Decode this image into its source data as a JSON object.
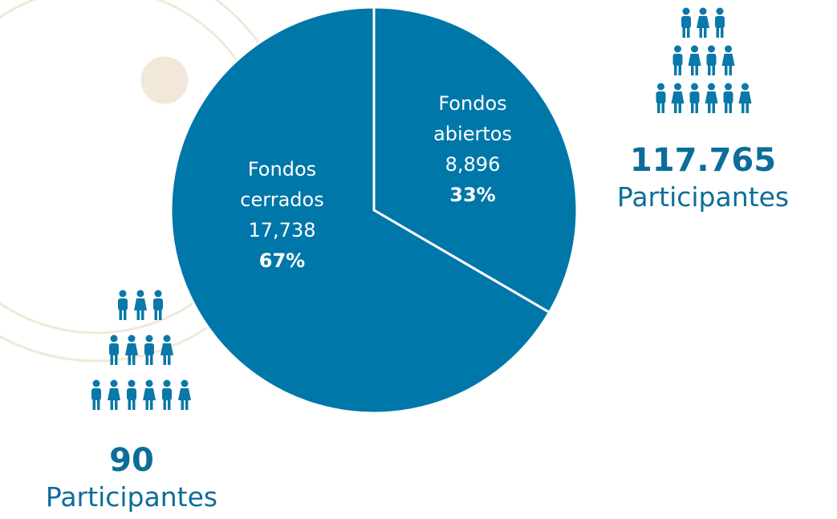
{
  "chart_data": {
    "type": "pie",
    "categories": [
      "Fondos abiertos",
      "Fondos cerrados"
    ],
    "values": [
      8896,
      17738
    ],
    "value_labels": [
      "8,896",
      "17,738"
    ],
    "shares": [
      33,
      67
    ],
    "share_labels": [
      "33%",
      "67%"
    ],
    "color": "#0077a9",
    "annotations": [
      {
        "value": 117765,
        "value_label": "117.765",
        "text": "Participantes"
      },
      {
        "value": 90,
        "value_label": "90",
        "text": "Participantes"
      }
    ]
  }
}
